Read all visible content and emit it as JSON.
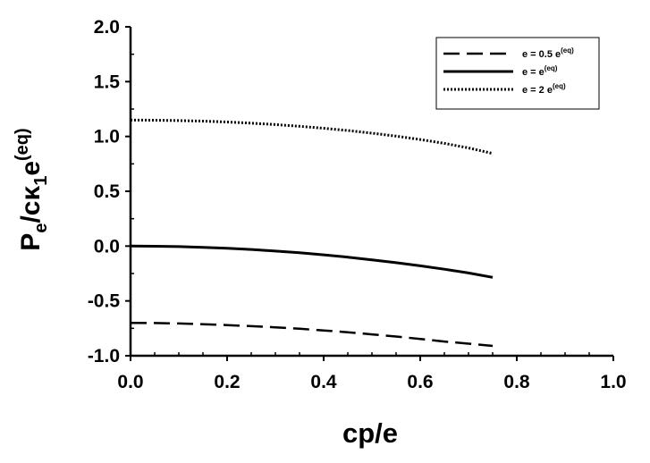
{
  "chart_data": {
    "type": "line",
    "xlabel": "cp/e",
    "ylabel": {
      "main": "P",
      "sub1": "e",
      "mid": "/c",
      "kappa": "κ",
      "sub2": "1",
      "e": "e",
      "sup": "(eq)"
    },
    "xlim": [
      0.0,
      1.0
    ],
    "ylim": [
      -1.0,
      2.0
    ],
    "x_ticks": [
      "0.0",
      "0.2",
      "0.4",
      "0.6",
      "0.8",
      "1.0"
    ],
    "y_ticks": [
      "-1.0",
      "-0.5",
      "0.0",
      "0.5",
      "1.0",
      "1.5",
      "2.0"
    ],
    "grid": false,
    "legend_position": "top-right",
    "series": [
      {
        "name": "e = 0.5 e(eq)",
        "legend_parts": {
          "base": "e = 0.5 e",
          "sup": "(eq)"
        },
        "style": "dashed",
        "x": [
          0.0,
          0.05,
          0.1,
          0.15,
          0.2,
          0.25,
          0.3,
          0.35,
          0.4,
          0.45,
          0.5,
          0.55,
          0.6,
          0.65,
          0.7,
          0.75
        ],
        "y": [
          -0.7,
          -0.702,
          -0.706,
          -0.712,
          -0.72,
          -0.73,
          -0.741,
          -0.754,
          -0.769,
          -0.786,
          -0.805,
          -0.825,
          -0.847,
          -0.87,
          -0.89,
          -0.91
        ]
      },
      {
        "name": "e = e(eq)",
        "legend_parts": {
          "base": "e = e",
          "sup": "(eq)"
        },
        "style": "solid",
        "x": [
          0.0,
          0.05,
          0.1,
          0.15,
          0.2,
          0.25,
          0.3,
          0.35,
          0.4,
          0.45,
          0.5,
          0.55,
          0.6,
          0.65,
          0.7,
          0.75
        ],
        "y": [
          0.0,
          -0.001,
          -0.005,
          -0.011,
          -0.02,
          -0.031,
          -0.045,
          -0.061,
          -0.08,
          -0.101,
          -0.125,
          -0.151,
          -0.18,
          -0.211,
          -0.245,
          -0.285
        ]
      },
      {
        "name": "e = 2 e(eq)",
        "legend_parts": {
          "base": "e = 2 e",
          "sup": "(eq)"
        },
        "style": "dotted",
        "x": [
          0.0,
          0.05,
          0.1,
          0.15,
          0.2,
          0.25,
          0.3,
          0.35,
          0.4,
          0.45,
          0.5,
          0.55,
          0.6,
          0.65,
          0.7,
          0.75
        ],
        "y": [
          1.15,
          1.148,
          1.145,
          1.14,
          1.132,
          1.121,
          1.108,
          1.093,
          1.075,
          1.054,
          1.03,
          1.003,
          0.972,
          0.937,
          0.895,
          0.845
        ]
      }
    ]
  }
}
